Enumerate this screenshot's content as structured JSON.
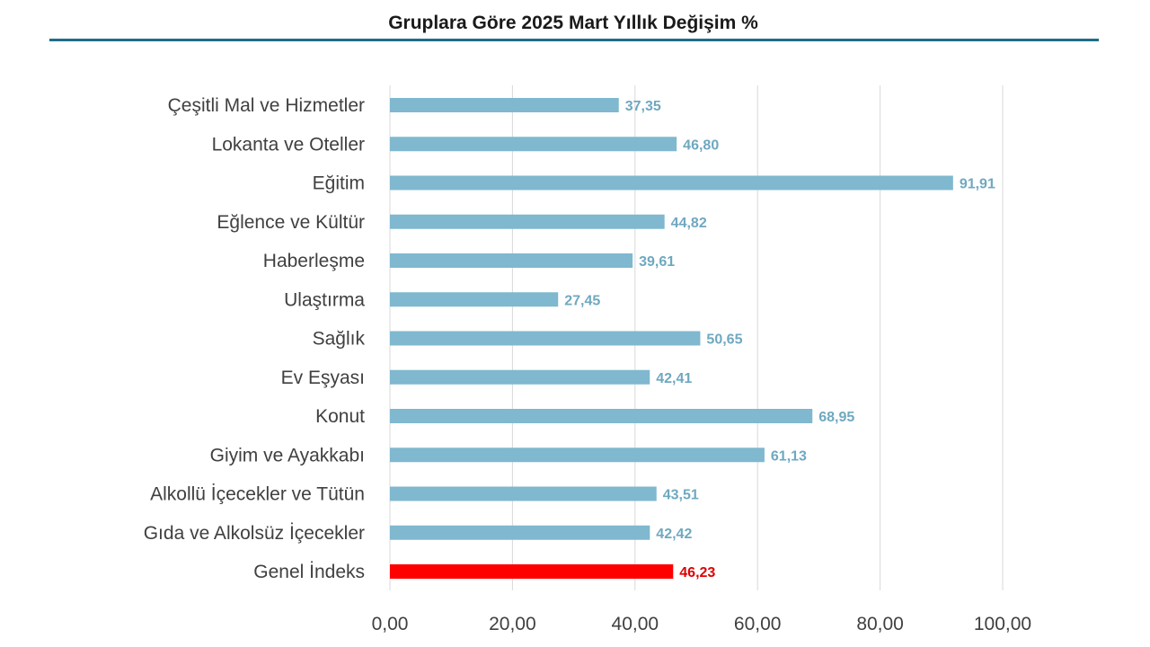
{
  "chart_data": {
    "type": "bar",
    "orientation": "horizontal",
    "title": "Gruplara Göre 2025 Mart Yıllık Değişim %",
    "categories": [
      "Çeşitli Mal ve Hizmetler",
      "Lokanta ve Oteller",
      "Eğitim",
      "Eğlence ve Kültür",
      "Haberleşme",
      "Ulaştırma",
      "Sağlık",
      "Ev Eşyası",
      "Konut",
      "Giyim ve Ayakkabı",
      "Alkollü İçecekler ve Tütün",
      "Gıda ve Alkolsüz İçecekler",
      "Genel İndeks"
    ],
    "values": [
      37.35,
      46.8,
      91.91,
      44.82,
      39.61,
      27.45,
      50.65,
      42.41,
      68.95,
      61.13,
      43.51,
      42.42,
      46.23
    ],
    "value_labels": [
      "37,35",
      "46,80",
      "91,91",
      "44,82",
      "39,61",
      "27,45",
      "50,65",
      "42,41",
      "68,95",
      "61,13",
      "43,51",
      "42,42",
      "46,23"
    ],
    "bar_colors": [
      "#7fb8cf",
      "#7fb8cf",
      "#7fb8cf",
      "#7fb8cf",
      "#7fb8cf",
      "#7fb8cf",
      "#7fb8cf",
      "#7fb8cf",
      "#7fb8cf",
      "#7fb8cf",
      "#7fb8cf",
      "#7fb8cf",
      "#ff0000"
    ],
    "label_colors": [
      "#6fa8c0",
      "#6fa8c0",
      "#6fa8c0",
      "#6fa8c0",
      "#6fa8c0",
      "#6fa8c0",
      "#6fa8c0",
      "#6fa8c0",
      "#6fa8c0",
      "#6fa8c0",
      "#6fa8c0",
      "#6fa8c0",
      "#e00000"
    ],
    "xlim": [
      0,
      100
    ],
    "xticks": [
      0,
      20,
      40,
      60,
      80,
      100
    ],
    "xtick_labels": [
      "0,00",
      "20,00",
      "40,00",
      "60,00",
      "80,00",
      "100,00"
    ],
    "grid": "vertical",
    "legend": "none"
  }
}
